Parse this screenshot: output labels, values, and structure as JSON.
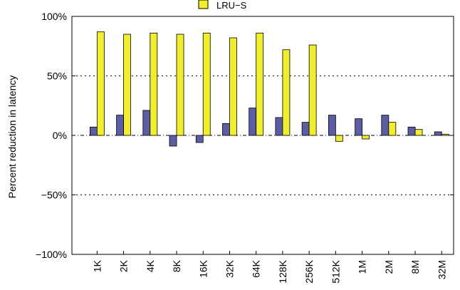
{
  "chart_data": {
    "type": "bar",
    "xlabel": "",
    "ylabel": "Percent reduction in latency",
    "ylim": [
      -100,
      100
    ],
    "yticks": [
      100,
      50,
      0,
      -50,
      -100
    ],
    "ytick_labels": [
      "100%",
      "50%",
      "0%",
      "−50%",
      "−100%"
    ],
    "categories": [
      "1K",
      "2K",
      "4K",
      "8K",
      "16K",
      "32K",
      "64K",
      "128K",
      "256K",
      "512K",
      "1M",
      "2M",
      "8M",
      "32M"
    ],
    "grid": "horizontal dotted at ±50% and 0%",
    "legend_position": "top-center",
    "series": [
      {
        "name": "",
        "color": "#5b5ea6",
        "values": [
          7,
          17,
          21,
          -9,
          -6,
          10,
          23,
          15,
          11,
          17,
          14,
          17,
          7,
          3
        ]
      },
      {
        "name": "LRU−S",
        "color": "#f0ef2a",
        "values": [
          87,
          85,
          86,
          85,
          86,
          82,
          86,
          72,
          76,
          -5,
          -3,
          11,
          5,
          1
        ]
      }
    ]
  }
}
